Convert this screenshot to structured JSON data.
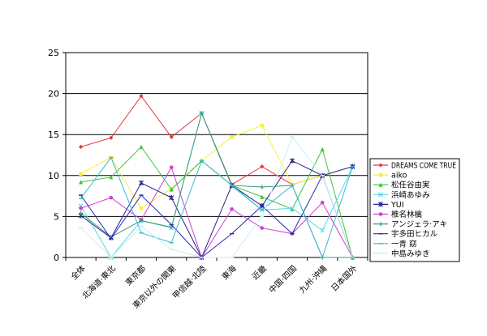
{
  "chart_data": {
    "type": "line",
    "categories": [
      "全体",
      "北海道·東北",
      "東京都",
      "東京以外の関東",
      "甲信越·北陸",
      "東海",
      "近畿",
      "中国·四国",
      "九州·沖縄",
      "日本国外"
    ],
    "ylim": [
      0,
      25
    ],
    "yticks": [
      0,
      5,
      10,
      15,
      20,
      25
    ],
    "grid": "horizontal",
    "legend_position": "right",
    "series": [
      {
        "name": "DREAMS COME TRUE",
        "color": "#e8343a",
        "marker": "diamond",
        "values": [
          13.5,
          14.6,
          19.7,
          14.7,
          17.6,
          8.9,
          11.1,
          8.9,
          10.0,
          11.1
        ]
      },
      {
        "name": "aiko",
        "color": "#f2f23a",
        "marker": "square",
        "values": [
          10.2,
          12.2,
          6.0,
          8.4,
          11.8,
          14.7,
          16.1,
          8.9,
          10.0,
          11.1
        ]
      },
      {
        "name": "松任谷由実",
        "color": "#38c83a",
        "marker": "triangle",
        "values": [
          9.2,
          9.8,
          13.5,
          8.3,
          11.8,
          8.8,
          7.4,
          5.9,
          13.2,
          0
        ]
      },
      {
        "name": "浜崎あゆみ",
        "color": "#5ad8e8",
        "marker": "x",
        "values": [
          6.3,
          0,
          4.5,
          3.6,
          17.6,
          8.7,
          5.8,
          6.0,
          3.3,
          11.1
        ]
      },
      {
        "name": "YUI",
        "color": "#22228c",
        "marker": "star",
        "values": [
          5.1,
          2.4,
          9.1,
          7.3,
          0,
          8.8,
          6.3,
          11.8,
          10.0,
          11.1
        ]
      },
      {
        "name": "椎名林檎",
        "color": "#d040d0",
        "marker": "circle",
        "values": [
          6.0,
          7.3,
          4.6,
          11.0,
          0,
          5.9,
          3.6,
          2.9,
          6.7,
          0
        ]
      },
      {
        "name": "アンジェラ·アキ",
        "color": "#3a9a7a",
        "marker": "plus",
        "values": [
          5.4,
          2.5,
          4.5,
          3.7,
          17.6,
          8.8,
          8.6,
          8.8,
          0,
          0
        ]
      },
      {
        "name": "宇多田ヒカル",
        "color": "#2a2ab0",
        "marker": "dash",
        "values": [
          7.6,
          2.3,
          7.6,
          4.0,
          0,
          2.9,
          6.3,
          2.9,
          10.0,
          0
        ]
      },
      {
        "name": "一青 窈",
        "color": "#3ab8d0",
        "marker": "dash",
        "values": [
          7.2,
          12.2,
          3.0,
          1.8,
          11.8,
          8.8,
          5.8,
          8.8,
          0,
          11.1
        ]
      },
      {
        "name": "中島みゆき",
        "color": "#c8eef0",
        "marker": "dash",
        "values": [
          3.6,
          0,
          3.8,
          1.0,
          0,
          0,
          5.0,
          14.7,
          10.0,
          0
        ]
      }
    ]
  }
}
